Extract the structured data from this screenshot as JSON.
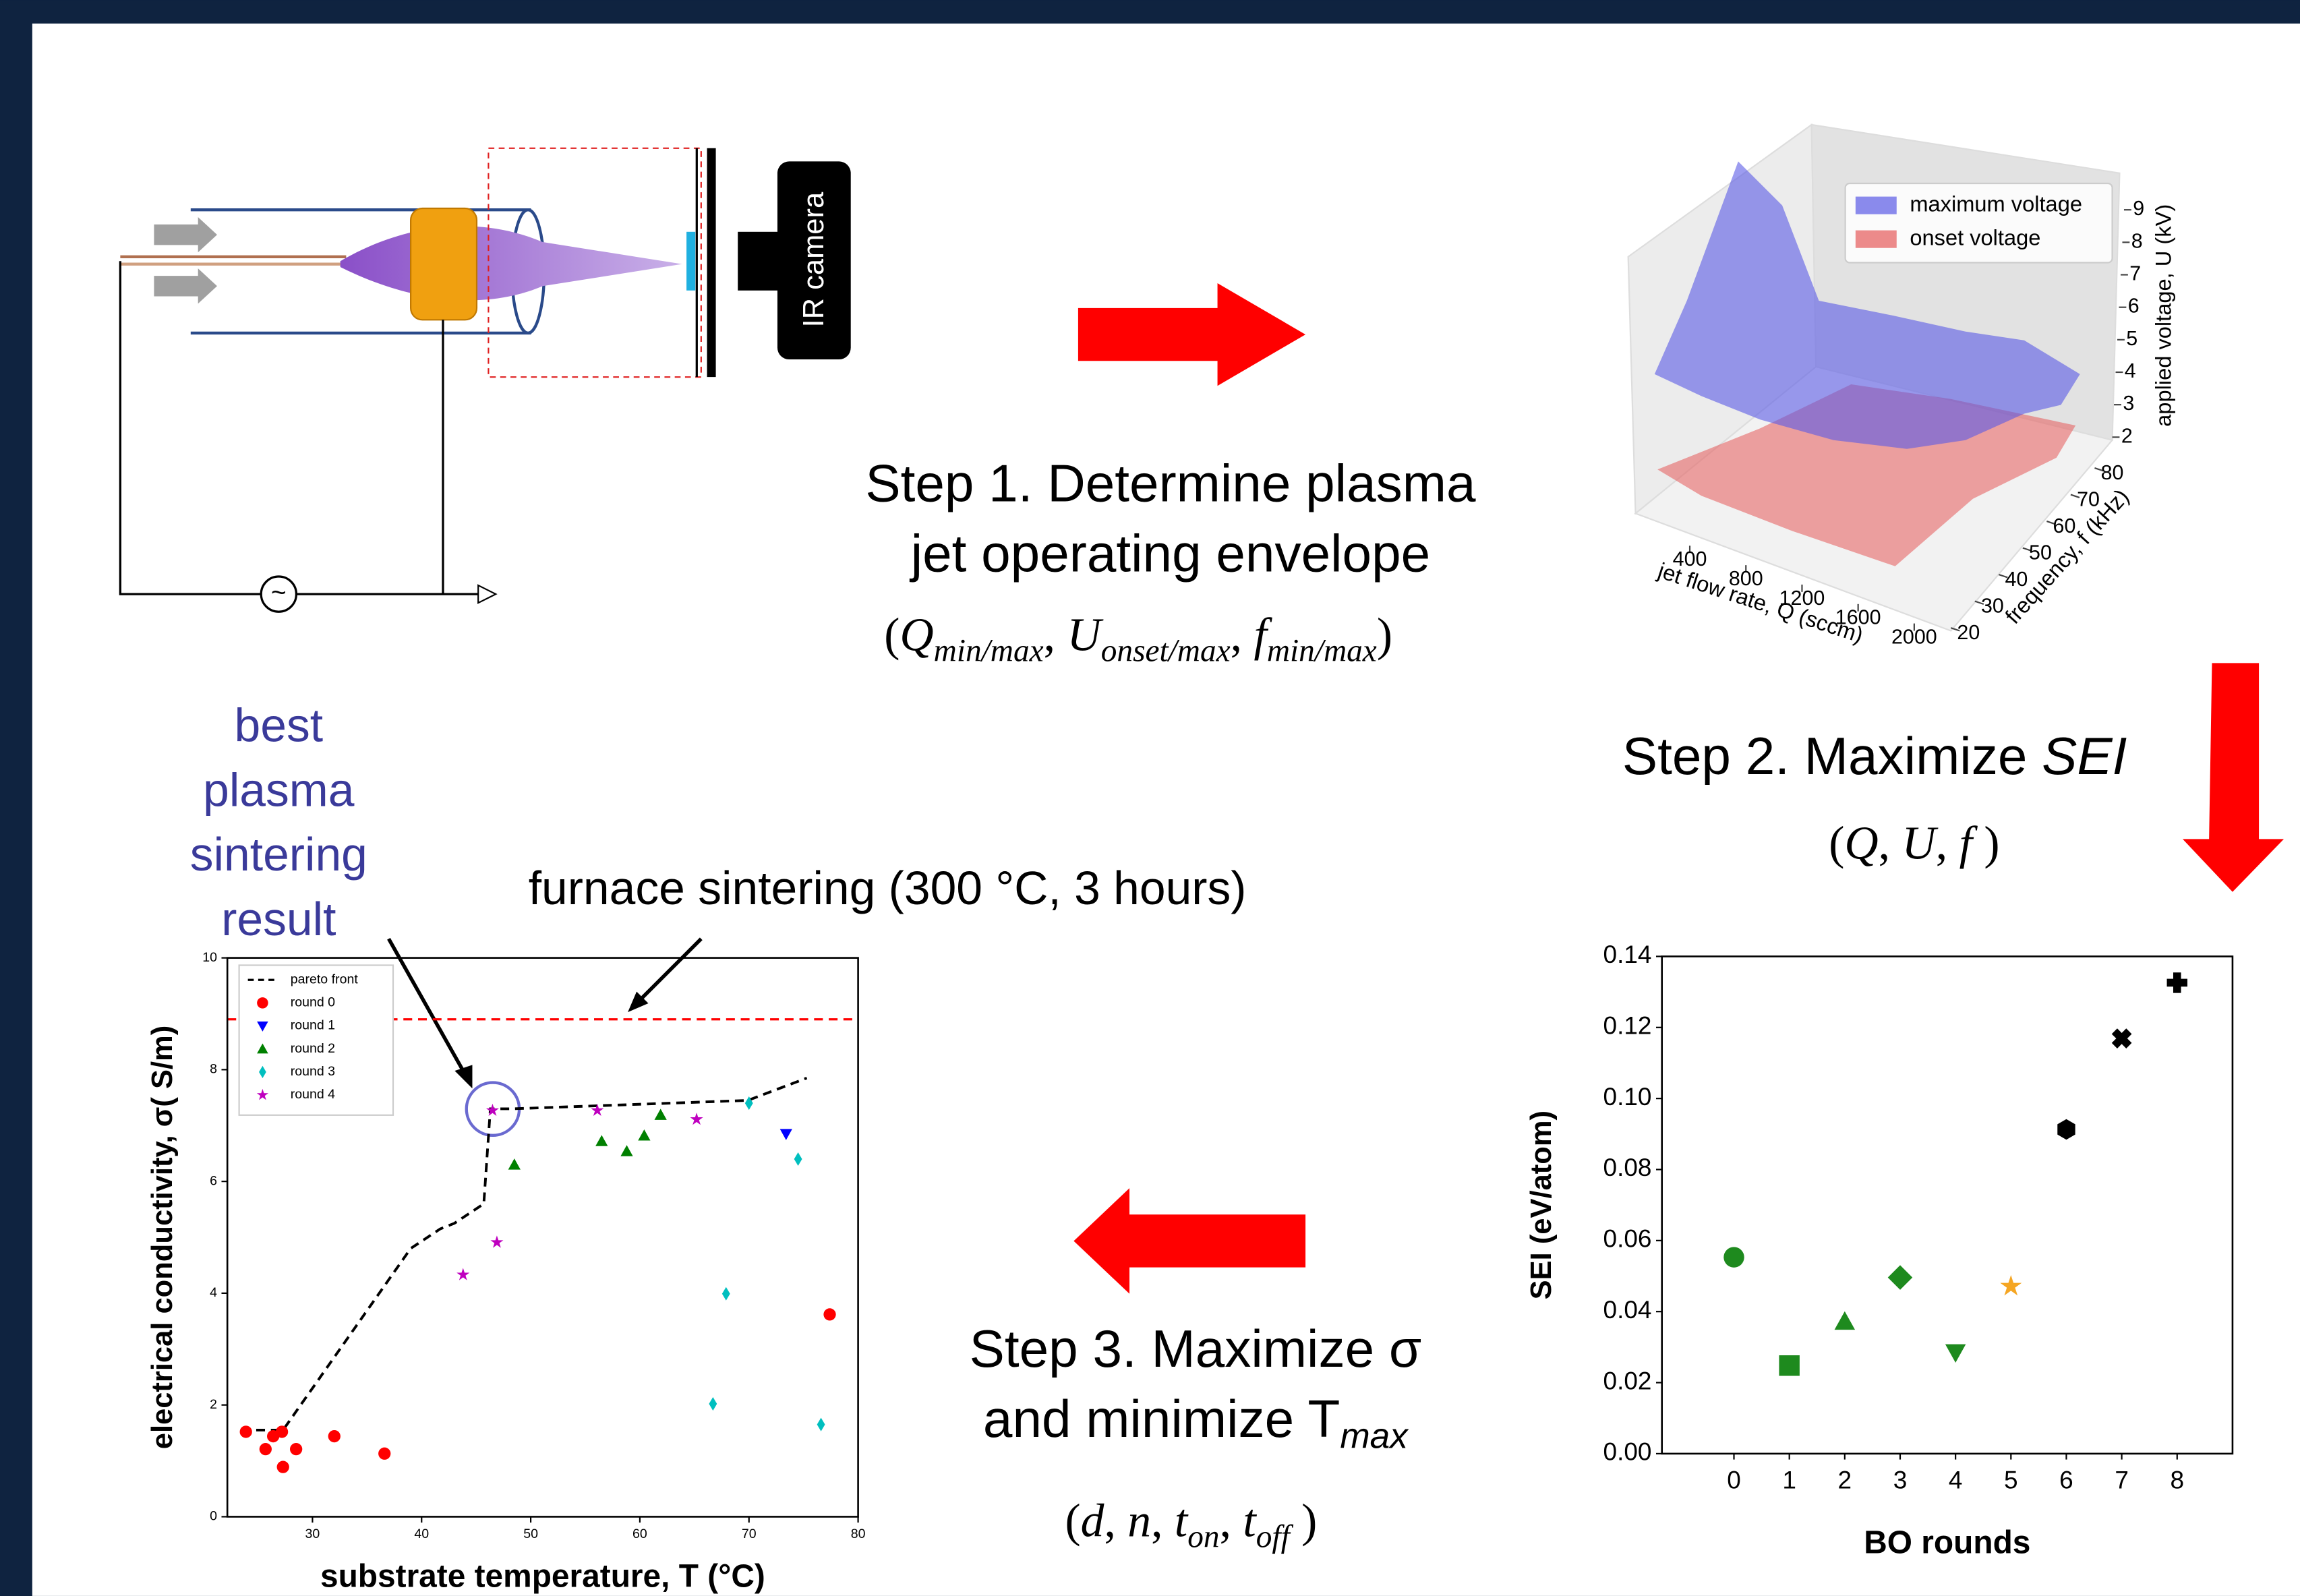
{
  "diagram": {
    "camera_label": "IR camera",
    "source_symbol": "~"
  },
  "steps": [
    {
      "lines": [
        [
          {
            "text": "Step 1. Determine plasma"
          }
        ],
        [
          {
            "text": "jet operating envelope"
          }
        ]
      ],
      "params": [
        {
          "text": "("
        },
        {
          "text": "Q",
          "style": "italic"
        },
        {
          "text": "min/max",
          "style": "sub"
        },
        {
          "text": ", "
        },
        {
          "text": "U",
          "style": "italic"
        },
        {
          "text": "onset/max",
          "style": "sub"
        },
        {
          "text": ", "
        },
        {
          "text": "f",
          "style": "italic"
        },
        {
          "text": "min/max",
          "style": "sub"
        },
        {
          "text": ")"
        }
      ]
    },
    {
      "lines": [
        [
          {
            "text": "Step 2. Maximize "
          },
          {
            "text": "SEI",
            "style": "italic"
          }
        ]
      ],
      "params": [
        {
          "text": "("
        },
        {
          "text": "Q",
          "style": "italic"
        },
        {
          "text": ", "
        },
        {
          "text": "U",
          "style": "italic"
        },
        {
          "text": ", "
        },
        {
          "text": "f",
          "style": "italic"
        },
        {
          "text": " )"
        }
      ]
    },
    {
      "lines": [
        [
          {
            "text": "Step 3. Maximize σ"
          }
        ],
        [
          {
            "text": "and minimize T"
          },
          {
            "text": "max",
            "style": "sub"
          }
        ]
      ],
      "params": [
        {
          "text": "("
        },
        {
          "text": "d",
          "style": "italic"
        },
        {
          "text": ", "
        },
        {
          "text": "n",
          "style": "italic"
        },
        {
          "text": ", "
        },
        {
          "text": "t",
          "style": "italic"
        },
        {
          "text": "on",
          "style": "sub"
        },
        {
          "text": ", "
        },
        {
          "text": "t",
          "style": "italic"
        },
        {
          "text": "off",
          "style": "sub"
        },
        {
          "text": " )"
        }
      ]
    }
  ],
  "annotations": {
    "best": [
      "best",
      "plasma",
      "sintering",
      "result"
    ],
    "furnace": "furnace sintering (300 °C, 3 hours)"
  },
  "chart_data": [
    {
      "type": "surface3d",
      "xlabel": "jet flow rate, Q (sccm)",
      "ylabel": "frequency, f (kHz)",
      "zlabel": "applied voltage, U (kV)",
      "xticks": [
        400,
        800,
        1200,
        1600,
        2000
      ],
      "yticks": [
        20,
        30,
        40,
        50,
        60,
        70,
        80
      ],
      "zticks": [
        2,
        3,
        4,
        5,
        6,
        7,
        8,
        9
      ],
      "legend": "upper right",
      "series": [
        {
          "name": "maximum voltage",
          "color": "#5a5ae6"
        },
        {
          "name": "onset voltage",
          "color": "#e65a5a"
        }
      ]
    },
    {
      "type": "scatter",
      "xlabel": "substrate temperature, T (°C)",
      "ylabel": "electrical conductivity, σ( S/m)",
      "xlim": [
        22.2,
        80
      ],
      "ylim": [
        0,
        10
      ],
      "xticks": [
        30,
        40,
        50,
        60,
        70,
        80
      ],
      "yticks": [
        0,
        2,
        4,
        6,
        8,
        10
      ],
      "legend": "upper left",
      "reference_line": {
        "value": 8.9,
        "color": "#ff0000"
      },
      "series": [
        {
          "name": "pareto front",
          "type": "line",
          "color": "#000000",
          "x": [
            23.5,
            27.3,
            39,
            41.7,
            43,
            45.7,
            46.3,
            48.4,
            69.9,
            75.3
          ],
          "values": [
            1.55,
            1.55,
            4.8,
            5.15,
            5.25,
            5.6,
            7.3,
            7.3,
            7.45,
            7.85
          ]
        },
        {
          "name": "round 0",
          "marker": "o",
          "color": "#ff0000",
          "x": [
            23.9,
            25.7,
            26.4,
            27.2,
            27.3,
            28.5,
            32,
            36.6,
            77.4
          ],
          "values": [
            1.52,
            1.21,
            1.44,
            1.52,
            0.89,
            1.21,
            1.44,
            1.13,
            3.62
          ]
        },
        {
          "name": "round 1",
          "marker": "v",
          "color": "#0000ff",
          "x": [
            73.4
          ],
          "values": [
            6.85
          ]
        },
        {
          "name": "round 2",
          "marker": "^",
          "color": "#008000",
          "x": [
            48.5,
            56.5,
            58.8,
            60.4,
            61.9
          ],
          "values": [
            6.3,
            6.72,
            6.54,
            6.82,
            7.19
          ]
        },
        {
          "name": "round 3",
          "marker": "d",
          "color": "#00bfbf",
          "x": [
            70,
            74.5,
            67.9,
            66.7,
            76.6
          ],
          "values": [
            7.4,
            6.4,
            3.99,
            2.02,
            1.65
          ]
        },
        {
          "name": "round 4",
          "marker": "*",
          "color": "#bf00bf",
          "x": [
            43.8,
            46.9,
            46.5,
            56.1,
            65.2
          ],
          "values": [
            4.33,
            4.91,
            7.27,
            7.27,
            7.11
          ]
        }
      ]
    },
    {
      "type": "scatter",
      "xlabel": "BO rounds",
      "ylabel": "SEI (eV/atom)",
      "xlim": [
        -1.3,
        9
      ],
      "ylim": [
        0,
        0.14
      ],
      "xticks": [
        0,
        1,
        2,
        3,
        4,
        5,
        6,
        7,
        8
      ],
      "yticks": [
        {
          "value": 0,
          "label": "0.00"
        },
        {
          "value": 0.02,
          "label": "0.02"
        },
        {
          "value": 0.04,
          "label": "0.04"
        },
        {
          "value": 0.06,
          "label": "0.06"
        },
        {
          "value": 0.08,
          "label": "0.08"
        },
        {
          "value": 0.1,
          "label": "0.10"
        },
        {
          "value": 0.12,
          "label": "0.12"
        },
        {
          "value": 0.14,
          "label": "0.14"
        }
      ],
      "series": [
        {
          "x": [
            0,
            1,
            2,
            3,
            4,
            5,
            6,
            7,
            8
          ],
          "values": [
            0.0553,
            0.0248,
            0.0372,
            0.0496,
            0.0285,
            0.0471,
            0.0913,
            0.1169,
            0.1326
          ],
          "markers": [
            "o",
            "s",
            "^",
            "D",
            "v",
            "*",
            "h",
            "X",
            "P"
          ],
          "colors": [
            "#1e8a1e",
            "#1e8a1e",
            "#1e8a1e",
            "#1e8a1e",
            "#1e8a1e",
            "#f5a623",
            "#000000",
            "#000000",
            "#000000"
          ]
        }
      ]
    }
  ]
}
